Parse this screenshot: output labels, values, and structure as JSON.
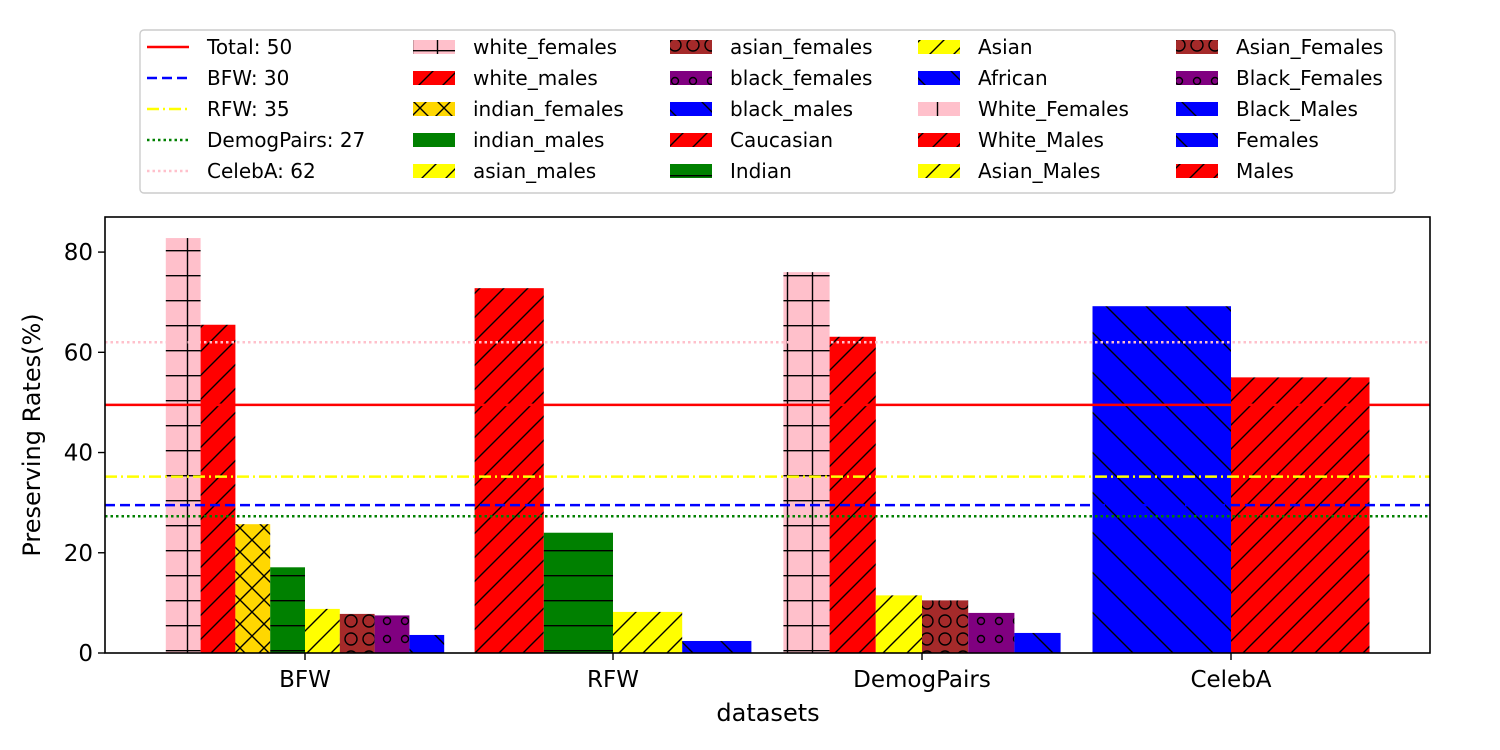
{
  "chart_data": {
    "type": "bar",
    "title": "",
    "xlabel": "datasets",
    "ylabel": "Preserving Rates(%)",
    "ylim": [
      0,
      87
    ],
    "yticks": [
      0,
      20,
      40,
      60,
      80
    ],
    "grid": false,
    "legend_position": "top",
    "groups": [
      {
        "name": "BFW",
        "bars": [
          {
            "name": "white_females",
            "value": 82.8,
            "color": "#ffc0cb",
            "hatch": "grid"
          },
          {
            "name": "white_males",
            "value": 65.5,
            "color": "#ff0000",
            "hatch": "diag"
          },
          {
            "name": "indian_females",
            "value": 25.7,
            "color": "#ffd700",
            "hatch": "cross"
          },
          {
            "name": "indian_males",
            "value": 17.1,
            "color": "#008000",
            "hatch": "horiz"
          },
          {
            "name": "asian_males",
            "value": 8.8,
            "color": "#ffff00",
            "hatch": "diag"
          },
          {
            "name": "asian_females",
            "value": 7.8,
            "color": "#a52a2a",
            "hatch": "circle-large"
          },
          {
            "name": "black_females",
            "value": 7.5,
            "color": "#800080",
            "hatch": "circle-small"
          },
          {
            "name": "black_males",
            "value": 3.6,
            "color": "#0000ff",
            "hatch": "backdiag"
          }
        ]
      },
      {
        "name": "RFW",
        "bars": [
          {
            "name": "Caucasian",
            "value": 72.8,
            "color": "#ff0000",
            "hatch": "diag"
          },
          {
            "name": "Indian",
            "value": 24.0,
            "color": "#008000",
            "hatch": "horiz"
          },
          {
            "name": "Asian",
            "value": 8.2,
            "color": "#ffff00",
            "hatch": "diag"
          },
          {
            "name": "African",
            "value": 2.4,
            "color": "#0000ff",
            "hatch": "backdiag"
          }
        ]
      },
      {
        "name": "DemogPairs",
        "bars": [
          {
            "name": "White_Females",
            "value": 76.0,
            "color": "#ffc0cb",
            "hatch": "grid"
          },
          {
            "name": "White_Males",
            "value": 63.1,
            "color": "#ff0000",
            "hatch": "diag"
          },
          {
            "name": "Asian_Males",
            "value": 11.5,
            "color": "#ffff00",
            "hatch": "diag"
          },
          {
            "name": "Asian_Females",
            "value": 10.5,
            "color": "#a52a2a",
            "hatch": "circle-large"
          },
          {
            "name": "Black_Females",
            "value": 8.0,
            "color": "#800080",
            "hatch": "circle-small"
          },
          {
            "name": "Black_Males",
            "value": 4.0,
            "color": "#0000ff",
            "hatch": "backdiag"
          }
        ]
      },
      {
        "name": "CelebA",
        "bars": [
          {
            "name": "Females",
            "value": 69.2,
            "color": "#0000ff",
            "hatch": "backdiag"
          },
          {
            "name": "Males",
            "value": 55.0,
            "color": "#ff0000",
            "hatch": "diag"
          }
        ]
      }
    ],
    "reference_lines": [
      {
        "label": "Total: 50",
        "value": 49.5,
        "color": "#ff0000",
        "style": "solid"
      },
      {
        "label": "BFW: 30",
        "value": 29.5,
        "color": "#0000ff",
        "style": "dashed"
      },
      {
        "label": "RFW: 35",
        "value": 35.2,
        "color": "#ffff00",
        "style": "dashdot"
      },
      {
        "label": "DemogPairs: 27",
        "value": 27.3,
        "color": "#008000",
        "style": "dotted"
      },
      {
        "label": "CelebA: 62",
        "value": 62.0,
        "color": "#ffc0cb",
        "style": "dotted"
      }
    ]
  }
}
